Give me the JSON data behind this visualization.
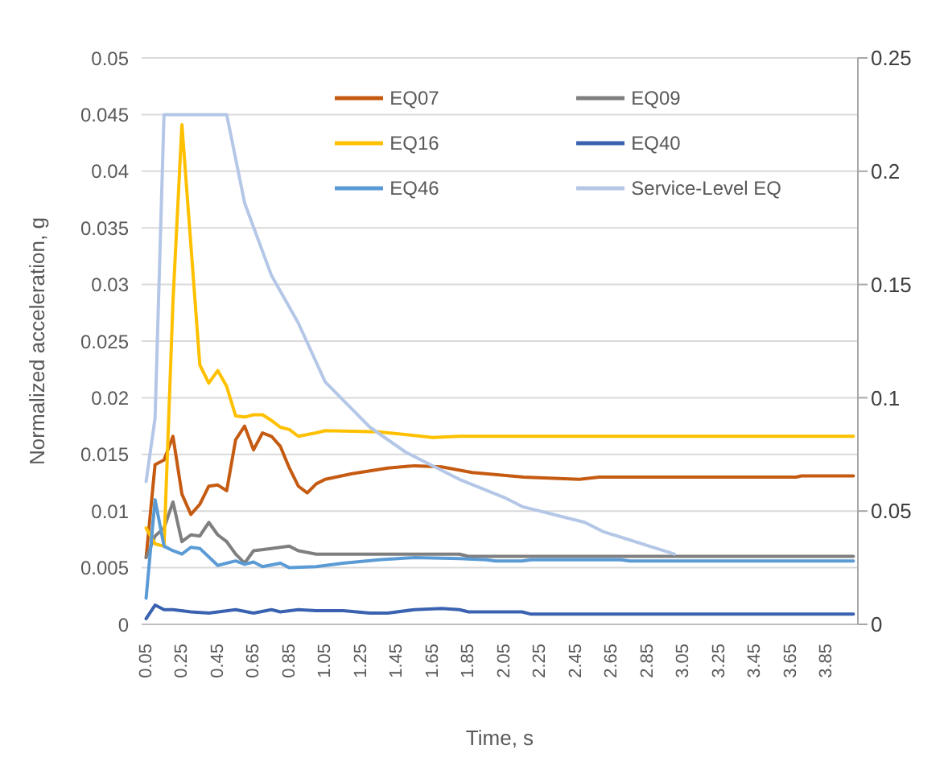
{
  "chart_data": {
    "type": "line",
    "xlabel": "Time, s",
    "ylabel": "Normalized acceleration, g",
    "xlim": [
      0.025,
      4.025
    ],
    "xticks": [
      0.05,
      0.25,
      0.45,
      0.65,
      0.85,
      1.05,
      1.25,
      1.45,
      1.65,
      1.85,
      2.05,
      2.25,
      2.45,
      2.65,
      2.85,
      3.05,
      3.25,
      3.45,
      3.65,
      3.85
    ],
    "ylim": [
      0,
      0.05
    ],
    "yticks": [
      0,
      0.005,
      0.01,
      0.015,
      0.02,
      0.025,
      0.03,
      0.035,
      0.04,
      0.045,
      0.05
    ],
    "y2lim": [
      0,
      0.25
    ],
    "y2ticks": [
      0,
      0.05,
      0.1,
      0.15,
      0.2,
      0.25
    ],
    "grid": "y",
    "legend": "top",
    "marker": "none",
    "line_style": "solid",
    "series": [
      {
        "name": "EQ07",
        "color": "#c55a11",
        "x": [
          0.05,
          0.1,
          0.15,
          0.2,
          0.25,
          0.3,
          0.35,
          0.4,
          0.45,
          0.5,
          0.55,
          0.6,
          0.65,
          0.7,
          0.75,
          0.8,
          0.85,
          0.9,
          0.95,
          1.0,
          1.05,
          1.2,
          1.4,
          1.55,
          1.7,
          1.87,
          2.16,
          2.47,
          2.58,
          3.68,
          3.71,
          4.0
        ],
        "values": [
          0.0059,
          0.0141,
          0.0145,
          0.0166,
          0.0115,
          0.0097,
          0.0106,
          0.0122,
          0.0123,
          0.0118,
          0.0163,
          0.0175,
          0.0154,
          0.0169,
          0.0166,
          0.0157,
          0.0138,
          0.0122,
          0.0116,
          0.0124,
          0.0128,
          0.0133,
          0.0138,
          0.014,
          0.0139,
          0.0134,
          0.013,
          0.0128,
          0.013,
          0.013,
          0.0131,
          0.0131
        ]
      },
      {
        "name": "EQ09",
        "color": "#7f7f7f",
        "x": [
          0.05,
          0.1,
          0.15,
          0.2,
          0.25,
          0.3,
          0.35,
          0.4,
          0.45,
          0.5,
          0.55,
          0.6,
          0.65,
          0.75,
          0.85,
          0.9,
          1.0,
          1.8,
          1.85,
          4.0
        ],
        "values": [
          0.0059,
          0.0078,
          0.0085,
          0.0108,
          0.0073,
          0.0079,
          0.0078,
          0.009,
          0.0079,
          0.0073,
          0.0062,
          0.0054,
          0.0065,
          0.0067,
          0.0069,
          0.0065,
          0.0062,
          0.0062,
          0.006,
          0.006
        ]
      },
      {
        "name": "EQ16",
        "color": "#ffc000",
        "x": [
          0.05,
          0.1,
          0.15,
          0.2,
          0.25,
          0.35,
          0.4,
          0.45,
          0.5,
          0.55,
          0.6,
          0.65,
          0.7,
          0.75,
          0.8,
          0.85,
          0.9,
          1.0,
          1.05,
          1.35,
          1.65,
          1.8,
          4.0
        ],
        "values": [
          0.0085,
          0.0071,
          0.0069,
          0.0285,
          0.0441,
          0.0229,
          0.0213,
          0.0224,
          0.021,
          0.0184,
          0.0183,
          0.0185,
          0.0185,
          0.018,
          0.0174,
          0.0172,
          0.0166,
          0.0169,
          0.0171,
          0.017,
          0.0165,
          0.0166,
          0.0166
        ]
      },
      {
        "name": "EQ40",
        "color": "#3a62b0",
        "x": [
          0.05,
          0.1,
          0.15,
          0.2,
          0.3,
          0.4,
          0.55,
          0.65,
          0.75,
          0.8,
          0.9,
          1.0,
          1.15,
          1.3,
          1.4,
          1.55,
          1.7,
          1.8,
          1.85,
          2.15,
          2.2,
          4.0
        ],
        "values": [
          0.0005,
          0.0017,
          0.0013,
          0.0013,
          0.0011,
          0.001,
          0.0013,
          0.001,
          0.0013,
          0.0011,
          0.0013,
          0.0012,
          0.0012,
          0.001,
          0.001,
          0.0013,
          0.0014,
          0.0013,
          0.0011,
          0.0011,
          0.0009,
          0.0009
        ]
      },
      {
        "name": "EQ46",
        "color": "#5b9bd5",
        "x": [
          0.05,
          0.1,
          0.15,
          0.2,
          0.25,
          0.3,
          0.35,
          0.45,
          0.55,
          0.6,
          0.65,
          0.7,
          0.8,
          0.85,
          1.0,
          1.15,
          1.35,
          1.55,
          1.8,
          1.95,
          2.0,
          2.15,
          2.2,
          2.7,
          2.75,
          4.0
        ],
        "values": [
          0.0023,
          0.011,
          0.0069,
          0.0065,
          0.0062,
          0.0068,
          0.0067,
          0.0052,
          0.0056,
          0.0053,
          0.0055,
          0.0051,
          0.0054,
          0.005,
          0.0051,
          0.0054,
          0.0057,
          0.0059,
          0.0058,
          0.0057,
          0.0056,
          0.0056,
          0.0057,
          0.0057,
          0.0056,
          0.0056
        ]
      },
      {
        "name": "Service-Level EQ",
        "color": "#b4c7e7",
        "axis": "y2",
        "x": [
          0.05,
          0.1,
          0.15,
          0.5,
          0.6,
          0.75,
          0.9,
          1.05,
          1.3,
          1.5,
          1.8,
          2.05,
          2.15,
          2.5,
          2.6,
          3.0
        ],
        "values": [
          0.063,
          0.091,
          0.225,
          0.225,
          0.186,
          0.154,
          0.133,
          0.107,
          0.087,
          0.076,
          0.064,
          0.056,
          0.052,
          0.045,
          0.041,
          0.031
        ]
      }
    ]
  }
}
